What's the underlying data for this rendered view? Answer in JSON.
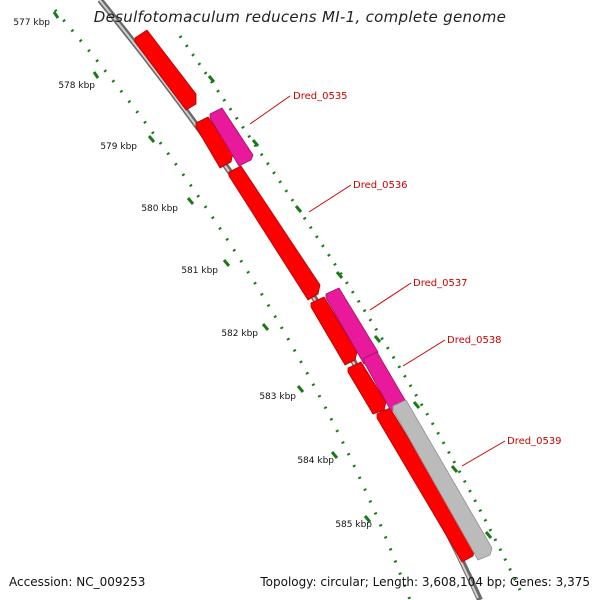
{
  "title": "Desulfotomaculum reducens MI-1, complete genome",
  "footer": {
    "accession": "Accession: NC_009253",
    "summary": "Topology: circular; Length: 3,608,104 bp; Genes: 3,375"
  },
  "scale": {
    "unit": "kbp",
    "ticks": [
      "577 kbp",
      "578 kbp",
      "579 kbp",
      "580 kbp",
      "581 kbp",
      "582 kbp",
      "583 kbp",
      "584 kbp",
      "585 kbp"
    ]
  },
  "genes": [
    {
      "name": "Dred_0535",
      "color": "#e8199a",
      "track": "outer"
    },
    {
      "name": "Dred_0536",
      "color": "#ff0000",
      "track": "inner"
    },
    {
      "name": "Dred_0537",
      "color": "#e8199a",
      "track": "outer"
    },
    {
      "name": "Dred_0538",
      "color": "#e8199a",
      "track": "outer"
    },
    {
      "name": "Dred_0539",
      "color": "#bbbbbb",
      "track": "outer"
    }
  ],
  "colors": {
    "cds_forward": "#ff0000",
    "cds_reverse": "#e8199a",
    "other": "#bbbbbb",
    "ruler": "#1a7a1a",
    "backbone": "#888888",
    "label": "#cc0000"
  }
}
